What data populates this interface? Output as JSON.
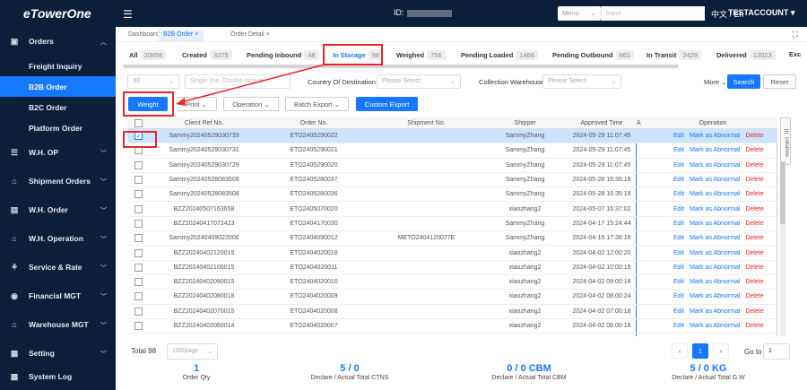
{
  "brand": {
    "logo": "eTowerOne"
  },
  "header": {
    "id_label": "ID:",
    "menu_select": "Menu",
    "search_placeholder": "Input",
    "lang": "中文 / En",
    "account": "TESTACCOUNT ▾"
  },
  "sidebar": {
    "groups": [
      {
        "label": "Orders",
        "icon": "orders-icon"
      },
      {
        "label": "W.H. OP",
        "icon": "warehouse-op-icon"
      },
      {
        "label": "Shipment Orders",
        "icon": "shipment-orders-icon"
      },
      {
        "label": "W.H. Order",
        "icon": "warehouse-order-icon"
      },
      {
        "label": "W.H. Operation",
        "icon": "warehouse-operation-icon"
      },
      {
        "label": "Service & Rate",
        "icon": "service-rate-icon"
      },
      {
        "label": "Financial MGT",
        "icon": "financial-icon"
      },
      {
        "label": "Warehouse MGT",
        "icon": "warehouse-mgt-icon"
      },
      {
        "label": "Setting",
        "icon": "setting-icon"
      },
      {
        "label": "System Log",
        "icon": "system-log-icon"
      }
    ],
    "subitems": [
      "Freight Inquiry",
      "B2B Order",
      "B2C Order",
      "Platform Order"
    ]
  },
  "page_tabs": [
    "Dashboard",
    "B2B Order",
    "Order Detail"
  ],
  "status_tabs": [
    {
      "label": "All",
      "count": "20856"
    },
    {
      "label": "Created",
      "count": "3375"
    },
    {
      "label": "Pending Inbound",
      "count": "48"
    },
    {
      "label": "In Storage",
      "count": "98"
    },
    {
      "label": "Weighed",
      "count": "756"
    },
    {
      "label": "Pending Loaded",
      "count": "1466"
    },
    {
      "label": "Pending Outbound",
      "count": "861"
    },
    {
      "label": "In Transit",
      "count": "2429"
    },
    {
      "label": "Delivered",
      "count": "12023"
    },
    {
      "label": "Exc",
      "count": ""
    }
  ],
  "filters": {
    "scope": "All",
    "search_placeholder": "Single line, Double click to",
    "dest_label": "Country Of Destination",
    "dest_placeholder": "Please Select",
    "wh_label": "Collection Warehouse",
    "wh_placeholder": "Please Select",
    "more": "More",
    "search_btn": "Search",
    "reset_btn": "Reset"
  },
  "actions": {
    "weight": "Weight",
    "print": "Print",
    "operation": "Operation",
    "batch_export": "Batch Export",
    "custom_export": "Custom Export"
  },
  "table": {
    "headers": [
      "Client Ref No.",
      "Order No.",
      "Shipment No.",
      "Shipper",
      "Approved Time",
      "A",
      "Operation"
    ],
    "columns_btn": "columns",
    "op_links": {
      "edit": "Edit",
      "abnormal": "Mark as Abnormal",
      "delete": "Delete"
    },
    "rows": [
      {
        "ref": "Sammy20240529030733",
        "order": "ETO2405290022",
        "shipment": "",
        "shipper": "SammyZhang",
        "time": "2024-05-29 11:07:45"
      },
      {
        "ref": "Sammy20240529030731",
        "order": "ETO2405290021",
        "shipment": "",
        "shipper": "SammyZhang",
        "time": "2024-05-29 11:07:45"
      },
      {
        "ref": "Sammy20240529030729",
        "order": "ETO2405290020",
        "shipment": "",
        "shipper": "SammyZhang",
        "time": "2024-05-29 11:07:45"
      },
      {
        "ref": "Sammy20240528083509",
        "order": "ETO2405280037",
        "shipment": "",
        "shipper": "SammyZhang",
        "time": "2024-05-28 16:35:18"
      },
      {
        "ref": "Sammy20240528083508",
        "order": "ETO2405280036",
        "shipment": "",
        "shipper": "SammyZhang",
        "time": "2024-05-28 16:35:18"
      },
      {
        "ref": "BZZ20240507163658",
        "order": "ETO2405070020",
        "shipment": "",
        "shipper": "xiaozhang2",
        "time": "2024-05-07 16:37:02"
      },
      {
        "ref": "BZZ20240417072423",
        "order": "ETO2404170030",
        "shipment": "",
        "shipper": "SammyZhang",
        "time": "2024-04-17 15:24:44"
      },
      {
        "ref": "Sammy20240409022006",
        "order": "ETO2404090012",
        "shipment": "METO2404120077E",
        "shipper": "SammyZhang",
        "time": "2024-04-15 17:36:18"
      },
      {
        "ref": "BZZ20240402120015",
        "order": "ETO2404020018",
        "shipment": "",
        "shipper": "xiaozhang2",
        "time": "2024-04-02 12:00:20"
      },
      {
        "ref": "BZZ20240402100015",
        "order": "ETO2404020011",
        "shipment": "",
        "shipper": "xiaozhang2",
        "time": "2024-04-02 10:00:19"
      },
      {
        "ref": "BZZ20240402090015",
        "order": "ETO2404020010",
        "shipment": "",
        "shipper": "xiaozhang2",
        "time": "2024-04-02 09:00:18"
      },
      {
        "ref": "BZZ20240402080018",
        "order": "ETO2404020009",
        "shipment": "",
        "shipper": "xiaozhang2",
        "time": "2024-04-02 08:00:24"
      },
      {
        "ref": "BZZ20240402070015",
        "order": "ETO2404020008",
        "shipment": "",
        "shipper": "xiaozhang2",
        "time": "2024-04-02 07:00:18"
      },
      {
        "ref": "BZZ20240402060014",
        "order": "ETO2404020007",
        "shipment": "",
        "shipper": "xiaozhang2",
        "time": "2024-04-02 06:00:18"
      }
    ]
  },
  "pagination": {
    "total": "Total 98",
    "page_size": "100/page",
    "current": "1",
    "goto_label": "Go to",
    "goto_value": "1"
  },
  "summary": [
    {
      "value": "1",
      "label": "Order Qty"
    },
    {
      "value": "5 / 0",
      "label": "Declare / Actual Total CTNS"
    },
    {
      "value": "0 / 0 CBM",
      "label": "Declare / Actual Total CBM"
    },
    {
      "value": "5 / 0 KG",
      "label": "Declare / Actual Total G.W"
    }
  ],
  "colors": {
    "accent": "#1677ff",
    "sidebar": "#0b1f3a",
    "highlight": "#e8262a"
  }
}
